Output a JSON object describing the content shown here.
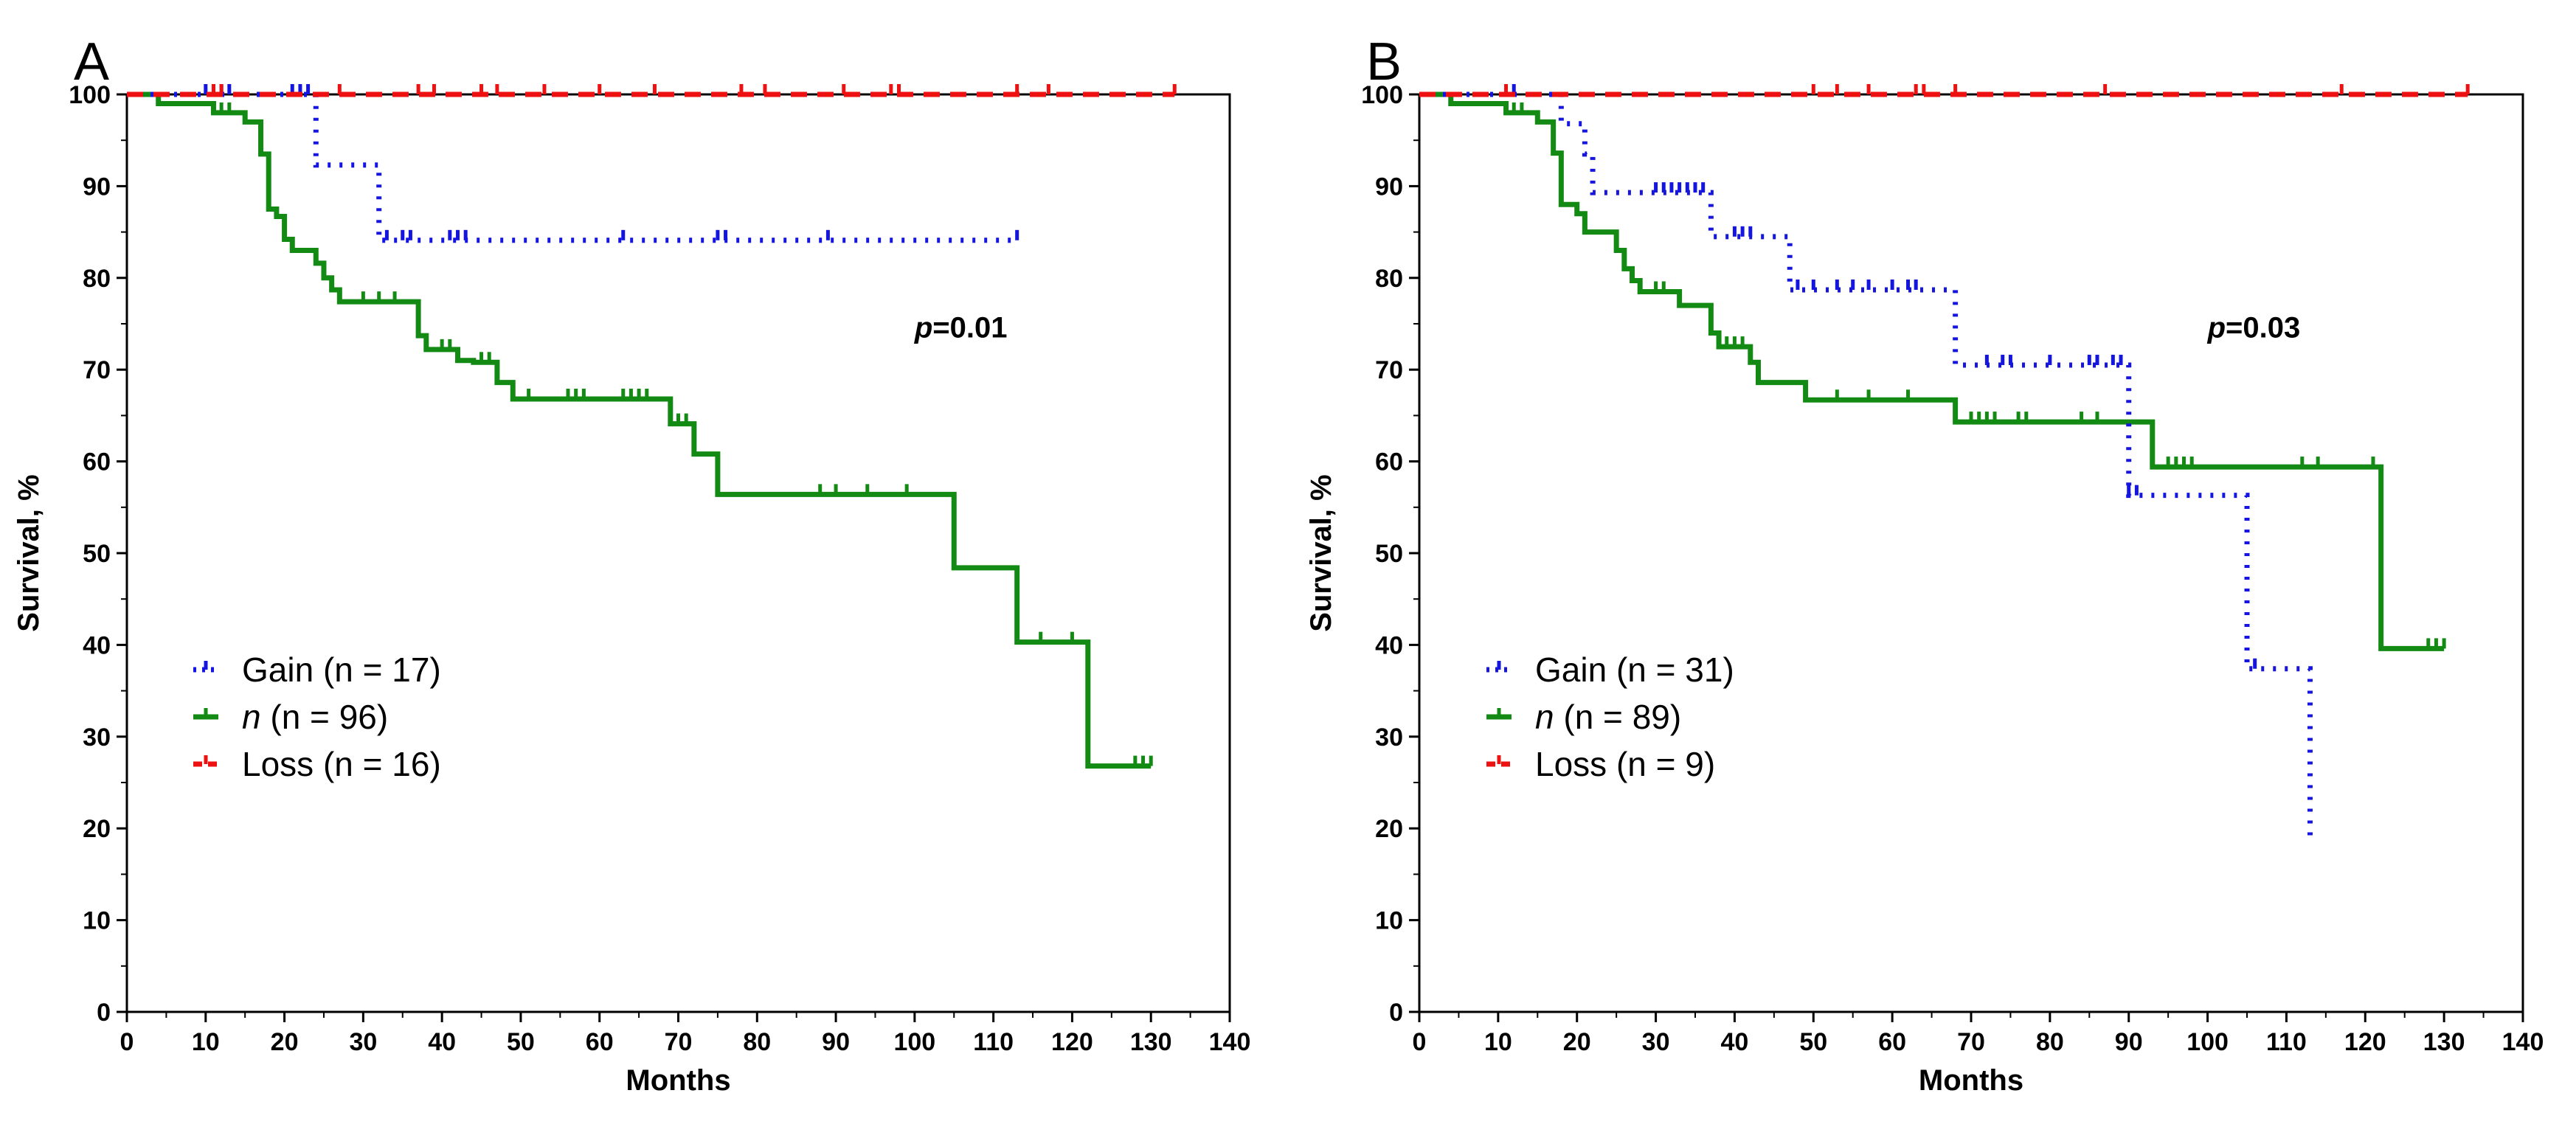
{
  "chart_data": [
    {
      "type": "line",
      "panel_label": "A",
      "xlabel": "Months",
      "ylabel": "Survival, %",
      "xlim": [
        0,
        140
      ],
      "ylim": [
        0,
        100
      ],
      "x_ticks": [
        0,
        10,
        20,
        30,
        40,
        50,
        60,
        70,
        80,
        90,
        100,
        110,
        120,
        130,
        140
      ],
      "y_ticks": [
        0,
        10,
        20,
        30,
        40,
        50,
        60,
        70,
        80,
        90,
        100
      ],
      "grid": false,
      "legend_position": "bottom-left",
      "annotation": {
        "p_symbol": "p",
        "p_text": "=0.01",
        "x": 100,
        "y": 73.5
      },
      "series": [
        {
          "name": "Gain (n = 17)",
          "legend_label": "Gain",
          "legend_count": "(n = 17)",
          "legend_italic": false,
          "color": "#1515e0",
          "dash": "dotted",
          "steps": [
            [
              0,
              100
            ],
            [
              24,
              92.3
            ],
            [
              32,
              84.1
            ],
            [
              113,
              84.1
            ]
          ],
          "censors": [
            10,
            11,
            12,
            13,
            21,
            22,
            23,
            33,
            35,
            36,
            41,
            42,
            43,
            63,
            75,
            76,
            89,
            113
          ]
        },
        {
          "name": "n (n = 96)",
          "legend_label": "n",
          "legend_count": "(n = 96)",
          "legend_italic": true,
          "color": "#138a13",
          "dash": "solid",
          "steps": [
            [
              0,
              100
            ],
            [
              4,
              99
            ],
            [
              11,
              98
            ],
            [
              15,
              97
            ],
            [
              17,
              93.5
            ],
            [
              18,
              87.5
            ],
            [
              19,
              86.7
            ],
            [
              20,
              84.2
            ],
            [
              21,
              83
            ],
            [
              24,
              81.6
            ],
            [
              25,
              80
            ],
            [
              26,
              78.7
            ],
            [
              27,
              77.4
            ],
            [
              37,
              73.7
            ],
            [
              38,
              72.2
            ],
            [
              42,
              71
            ],
            [
              44,
              70.8
            ],
            [
              47,
              68.6
            ],
            [
              49,
              66.8
            ],
            [
              69,
              64.1
            ],
            [
              72,
              60.8
            ],
            [
              75,
              56.4
            ],
            [
              105,
              48.4
            ],
            [
              113,
              40.3
            ],
            [
              122,
              26.8
            ],
            [
              130,
              26.8
            ]
          ],
          "censors": [
            12,
            13,
            30,
            32,
            34,
            40,
            41,
            42,
            45,
            46,
            51,
            56,
            57,
            58,
            63,
            64,
            65,
            66,
            70,
            71,
            88,
            90,
            94,
            99,
            116,
            120,
            128,
            129,
            130
          ]
        },
        {
          "name": "Loss (n = 16)",
          "legend_label": "Loss",
          "legend_count": "(n = 16)",
          "legend_italic": false,
          "color": "#ee1111",
          "dash": "dashed",
          "steps": [
            [
              0,
              100
            ],
            [
              133,
              100
            ]
          ],
          "censors": [
            11,
            12,
            27,
            37,
            39,
            45,
            47,
            53,
            60,
            67,
            78,
            81,
            91,
            97,
            98,
            113,
            117,
            133
          ]
        }
      ]
    },
    {
      "type": "line",
      "panel_label": "B",
      "xlabel": "Months",
      "ylabel": "Survival, %",
      "xlim": [
        0,
        140
      ],
      "ylim": [
        0,
        100
      ],
      "x_ticks": [
        0,
        10,
        20,
        30,
        40,
        50,
        60,
        70,
        80,
        90,
        100,
        110,
        120,
        130,
        140
      ],
      "y_ticks": [
        0,
        10,
        20,
        30,
        40,
        50,
        60,
        70,
        80,
        90,
        100
      ],
      "grid": false,
      "legend_position": "bottom-left",
      "annotation": {
        "p_symbol": "p",
        "p_text": "=0.03",
        "x": 100,
        "y": 73.5
      },
      "series": [
        {
          "name": "Gain (n = 31)",
          "legend_label": "Gain",
          "legend_count": "(n = 31)",
          "legend_italic": false,
          "color": "#1515e0",
          "dash": "dotted",
          "steps": [
            [
              0,
              100
            ],
            [
              18,
              96.8
            ],
            [
              21,
              93.5
            ],
            [
              22,
              89.3
            ],
            [
              37,
              84.5
            ],
            [
              47,
              78.7
            ],
            [
              68,
              70.5
            ],
            [
              90,
              56.3
            ],
            [
              105,
              37.4
            ],
            [
              113,
              19
            ],
            [
              113,
              19
            ]
          ],
          "censors": [
            12,
            30,
            31,
            32,
            33,
            34,
            35,
            36,
            40,
            41,
            42,
            48,
            50,
            53,
            55,
            57,
            60,
            62,
            63,
            72,
            74,
            75,
            80,
            85,
            86,
            88,
            89,
            90,
            91,
            106
          ]
        },
        {
          "name": "n (n = 89)",
          "legend_label": "n",
          "legend_count": "(n = 89)",
          "legend_italic": true,
          "color": "#138a13",
          "dash": "solid",
          "steps": [
            [
              0,
              100
            ],
            [
              4,
              99
            ],
            [
              11,
              98
            ],
            [
              15,
              97
            ],
            [
              17,
              93.6
            ],
            [
              18,
              88
            ],
            [
              20,
              87
            ],
            [
              21,
              85
            ],
            [
              25,
              83
            ],
            [
              26,
              81
            ],
            [
              27,
              79.7
            ],
            [
              28,
              78.5
            ],
            [
              33,
              77
            ],
            [
              37,
              74
            ],
            [
              38,
              72.5
            ],
            [
              42,
              70.8
            ],
            [
              43,
              68.6
            ],
            [
              49,
              66.7
            ],
            [
              68,
              64.3
            ],
            [
              93,
              59.4
            ],
            [
              122,
              39.6
            ],
            [
              130,
              39.6
            ]
          ],
          "censors": [
            12,
            13,
            30,
            31,
            38,
            39,
            40,
            41,
            53,
            57,
            62,
            70,
            71,
            72,
            73,
            76,
            77,
            84,
            86,
            95,
            96,
            97,
            98,
            112,
            114,
            121,
            128,
            129,
            130
          ]
        },
        {
          "name": "Loss (n = 9)",
          "legend_label": "Loss",
          "legend_count": "(n = 9)",
          "legend_italic": false,
          "color": "#ee1111",
          "dash": "dashed",
          "steps": [
            [
              0,
              100
            ],
            [
              133,
              100
            ]
          ],
          "censors": [
            11,
            50,
            53,
            57,
            63,
            64,
            68,
            87,
            117,
            133
          ]
        }
      ]
    }
  ]
}
